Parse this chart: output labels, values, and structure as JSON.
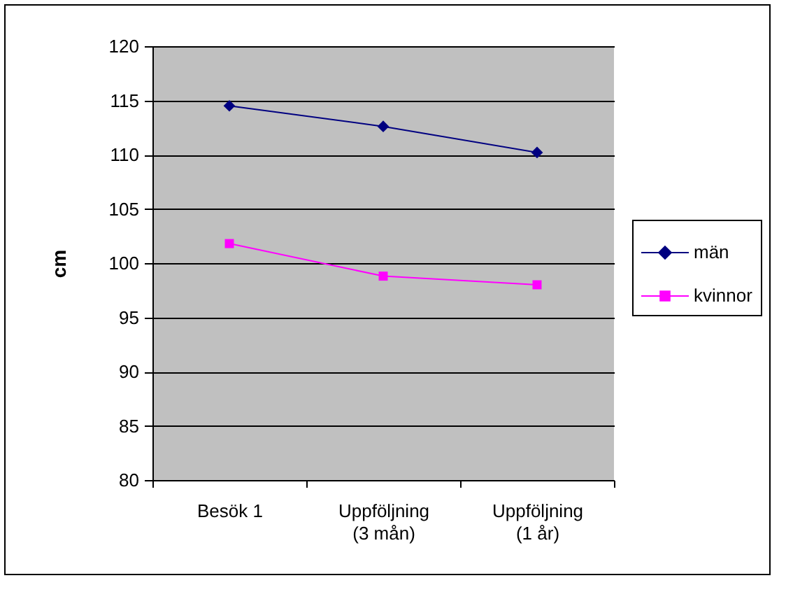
{
  "chart_data": {
    "type": "line",
    "ylabel": "cm",
    "categories": [
      "Besök 1",
      "Uppföljning\n(3 mån)",
      "Uppföljning\n(1 år)"
    ],
    "series": [
      {
        "name": "män",
        "color": "#000080",
        "marker": "diamond",
        "values": [
          114.5,
          112.6,
          110.2
        ]
      },
      {
        "name": "kvinnor",
        "color": "#ff00ff",
        "marker": "square",
        "values": [
          101.8,
          98.8,
          98.0
        ]
      }
    ],
    "ylim": [
      80,
      120
    ],
    "yticks": [
      80,
      85,
      90,
      95,
      100,
      105,
      110,
      115,
      120
    ],
    "grid": "y",
    "legend": "right",
    "line_style": "solid"
  }
}
